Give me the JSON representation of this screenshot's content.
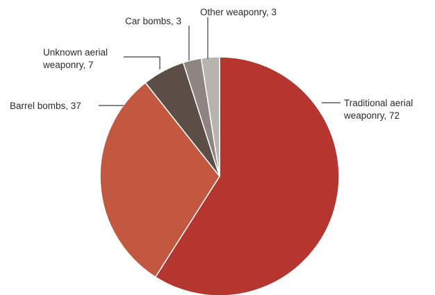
{
  "chart_data": {
    "type": "pie",
    "start": "top",
    "direction": "clockwise",
    "slices": [
      {
        "name": "Traditional aerial weaponry",
        "value": 72,
        "label_lines": [
          "Traditional aerial",
          "weaponry, 72"
        ],
        "color": "#b5352f"
      },
      {
        "name": "Barrel bombs",
        "value": 37,
        "label_lines": [
          "Barrel bombs, 37"
        ],
        "color": "#c35840"
      },
      {
        "name": "Unknown aerial weaponry",
        "value": 7,
        "label_lines": [
          "Unknown aerial",
          "weaponry, 7"
        ],
        "color": "#5c4d46"
      },
      {
        "name": "Car bombs",
        "value": 3,
        "label_lines": [
          "Car bombs, 3"
        ],
        "color": "#8e8480"
      },
      {
        "name": "Other weaponry",
        "value": 3,
        "label_lines": [
          "Other weaponry, 3"
        ],
        "color": "#b9b3b0"
      }
    ]
  }
}
